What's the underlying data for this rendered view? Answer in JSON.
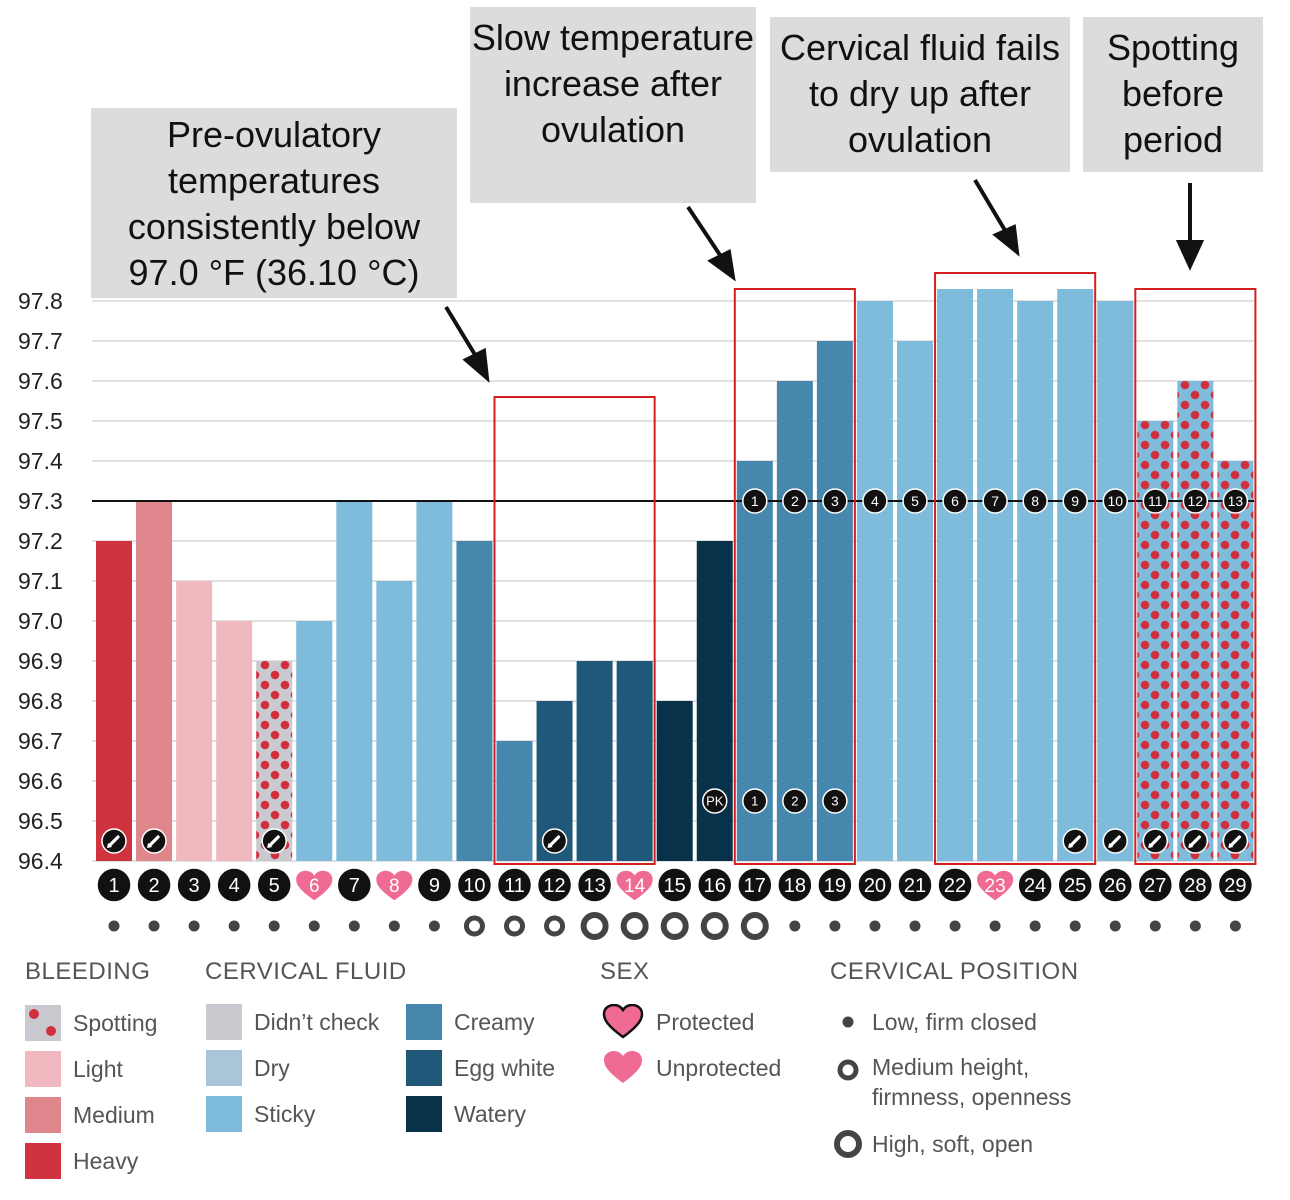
{
  "chart_data": {
    "type": "bar",
    "yticks": [
      "97.8",
      "97.7",
      "97.6",
      "97.5",
      "97.4",
      "97.3",
      "97.2",
      "97.1",
      "97.0",
      "96.9",
      "96.8",
      "96.7",
      "96.6",
      "96.5",
      "96.4"
    ],
    "ylim": [
      96.4,
      97.82
    ],
    "coverline": 97.3,
    "days": [
      {
        "day": "1",
        "temp": 97.2,
        "fill": "heavy",
        "note": true
      },
      {
        "day": "2",
        "temp": 97.3,
        "fill": "medium",
        "note": true
      },
      {
        "day": "3",
        "temp": 97.1,
        "fill": "light"
      },
      {
        "day": "4",
        "temp": 97.0,
        "fill": "light"
      },
      {
        "day": "5",
        "temp": 96.9,
        "fill": "spotting_check",
        "note": true
      },
      {
        "day": "6",
        "temp": 97.0,
        "fill": "sticky",
        "heart": true
      },
      {
        "day": "7",
        "temp": 97.3,
        "fill": "sticky"
      },
      {
        "day": "8",
        "temp": 97.1,
        "fill": "sticky",
        "heart": true
      },
      {
        "day": "9",
        "temp": 97.3,
        "fill": "sticky"
      },
      {
        "day": "10",
        "temp": 97.2,
        "fill": "creamy"
      },
      {
        "day": "11",
        "temp": 96.7,
        "fill": "creamy"
      },
      {
        "day": "12",
        "temp": 96.8,
        "fill": "eggwhite",
        "note": true
      },
      {
        "day": "13",
        "temp": 96.9,
        "fill": "eggwhite"
      },
      {
        "day": "14",
        "temp": 96.9,
        "fill": "eggwhite",
        "heart": true
      },
      {
        "day": "15",
        "temp": 96.8,
        "fill": "watery"
      },
      {
        "day": "16",
        "temp": 97.2,
        "fill": "watery",
        "peak": "PK"
      },
      {
        "day": "17",
        "temp": 97.4,
        "fill": "creamy",
        "lutealTop": "1",
        "peak": "1"
      },
      {
        "day": "18",
        "temp": 97.6,
        "fill": "creamy",
        "lutealTop": "2",
        "peak": "2"
      },
      {
        "day": "19",
        "temp": 97.7,
        "fill": "creamy",
        "lutealTop": "3",
        "peak": "3"
      },
      {
        "day": "20",
        "temp": 97.8,
        "fill": "sticky",
        "lutealTop": "4"
      },
      {
        "day": "21",
        "temp": 97.7,
        "fill": "sticky",
        "lutealTop": "5"
      },
      {
        "day": "22",
        "temp": 97.83,
        "fill": "sticky",
        "lutealTop": "6"
      },
      {
        "day": "23",
        "temp": 97.83,
        "fill": "sticky",
        "lutealTop": "7",
        "heart": true
      },
      {
        "day": "24",
        "temp": 97.8,
        "fill": "sticky",
        "lutealTop": "8"
      },
      {
        "day": "25",
        "temp": 97.83,
        "fill": "sticky",
        "lutealTop": "9",
        "note": true
      },
      {
        "day": "26",
        "temp": 97.8,
        "fill": "sticky",
        "lutealTop": "10",
        "note": true
      },
      {
        "day": "27",
        "temp": 97.5,
        "fill": "spotting_sticky",
        "lutealTop": "11",
        "note": true
      },
      {
        "day": "28",
        "temp": 97.6,
        "fill": "spotting_sticky",
        "lutealTop": "12",
        "note": true
      },
      {
        "day": "29",
        "temp": 97.4,
        "fill": "spotting_sticky",
        "lutealTop": "13",
        "note": true
      }
    ],
    "cervical_position": [
      "",
      "",
      "",
      "",
      "",
      "",
      "",
      "",
      "",
      "medium",
      "medium",
      "medium",
      "high",
      "high",
      "high",
      "high",
      "high",
      "low",
      "low",
      "low",
      "low",
      "low",
      "low",
      "low",
      "low",
      "low",
      "low",
      "low",
      "low"
    ],
    "cervical_position_first_days": [
      "low",
      "low",
      "low",
      "low",
      "low",
      "low",
      "low",
      "low",
      "low"
    ],
    "highlight_boxes": [
      {
        "from_day": 11,
        "to_day": 14,
        "top_temp": 97.56
      },
      {
        "from_day": 17,
        "to_day": 19,
        "top_temp": 97.83
      },
      {
        "from_day": 22,
        "to_day": 25,
        "top_temp": 97.87
      },
      {
        "from_day": 27,
        "to_day": 29,
        "top_temp": 97.83
      }
    ],
    "colors": {
      "heavy": "#cf3340",
      "medium": "#df858c",
      "light": "#efb9bf",
      "didnt_check": "#c9c9cf",
      "dry": "#a9c6d8",
      "sticky": "#7fbcdc",
      "creamy": "#4687ad",
      "eggwhite": "#1f5878",
      "watery": "#07324a",
      "spot": "#d0303e",
      "heart": "#f06b93",
      "box": "#d22020"
    }
  },
  "callouts": {
    "preovulatory": "Pre-ovulatory temperatures consistently below 97.0 °F (36.10 °C)",
    "slow_rise": "Slow temperature increase after ovulation",
    "fluid": "Cervical fluid fails to dry up after ovulation",
    "spotting": "Spotting before period"
  },
  "legend": {
    "bleeding": {
      "title": "BLEEDING",
      "spotting": "Spotting",
      "light": "Light",
      "medium": "Medium",
      "heavy": "Heavy"
    },
    "fluid": {
      "title": "CERVICAL FLUID",
      "didnt_check": "Didn’t check",
      "dry": "Dry",
      "sticky": "Sticky",
      "creamy": "Creamy",
      "eggwhite": "Egg white",
      "watery": "Watery"
    },
    "sex": {
      "title": "SEX",
      "protected": "Protected",
      "unprotected": "Unprotected"
    },
    "position": {
      "title": "CERVICAL POSITION",
      "low": "Low, firm closed",
      "medium_1": "Medium height,",
      "medium_2": "firmness, openness",
      "high": "High, soft, open"
    }
  }
}
